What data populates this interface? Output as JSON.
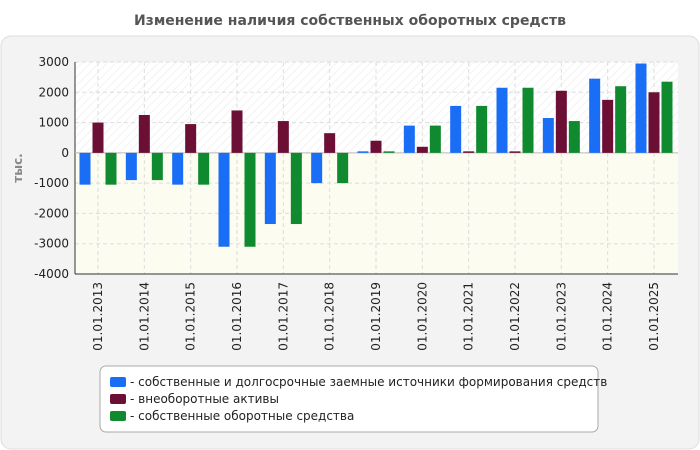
{
  "chart_data": {
    "type": "bar",
    "title": "Изменение наличия собственных оборотных средств",
    "xlabel": "",
    "ylabel": "тыс.",
    "ylim": [
      -4000,
      3000
    ],
    "yticks": [
      3000,
      2000,
      1000,
      0,
      -1000,
      -2000,
      -3000,
      -4000
    ],
    "categories": [
      "01.01.2013",
      "01.01.2014",
      "01.01.2015",
      "01.01.2016",
      "01.01.2017",
      "01.01.2018",
      "01.01.2019",
      "01.01.2020",
      "01.01.2021",
      "01.01.2022",
      "01.01.2023",
      "01.01.2024",
      "01.01.2025"
    ],
    "series": [
      {
        "name": "- собственные и долгосрочные заемные источники формирования средств",
        "color": "#1a6ef5",
        "values": [
          -1050,
          -900,
          -1050,
          -3100,
          -2350,
          -1000,
          50,
          900,
          1550,
          2150,
          1150,
          2450,
          2950
        ]
      },
      {
        "name": "- внеоборотные активы",
        "color": "#6b0f35",
        "values": [
          1000,
          1250,
          950,
          1400,
          1050,
          650,
          400,
          200,
          50,
          50,
          2050,
          1750,
          2000
        ]
      },
      {
        "name": "- собственные оборотные средства",
        "color": "#0f8a2f",
        "values": [
          -1050,
          -900,
          -1050,
          -3100,
          -2350,
          -1000,
          50,
          900,
          1550,
          2150,
          1050,
          2200,
          2350
        ]
      }
    ],
    "legend_position": "bottom-center",
    "grid": true
  }
}
